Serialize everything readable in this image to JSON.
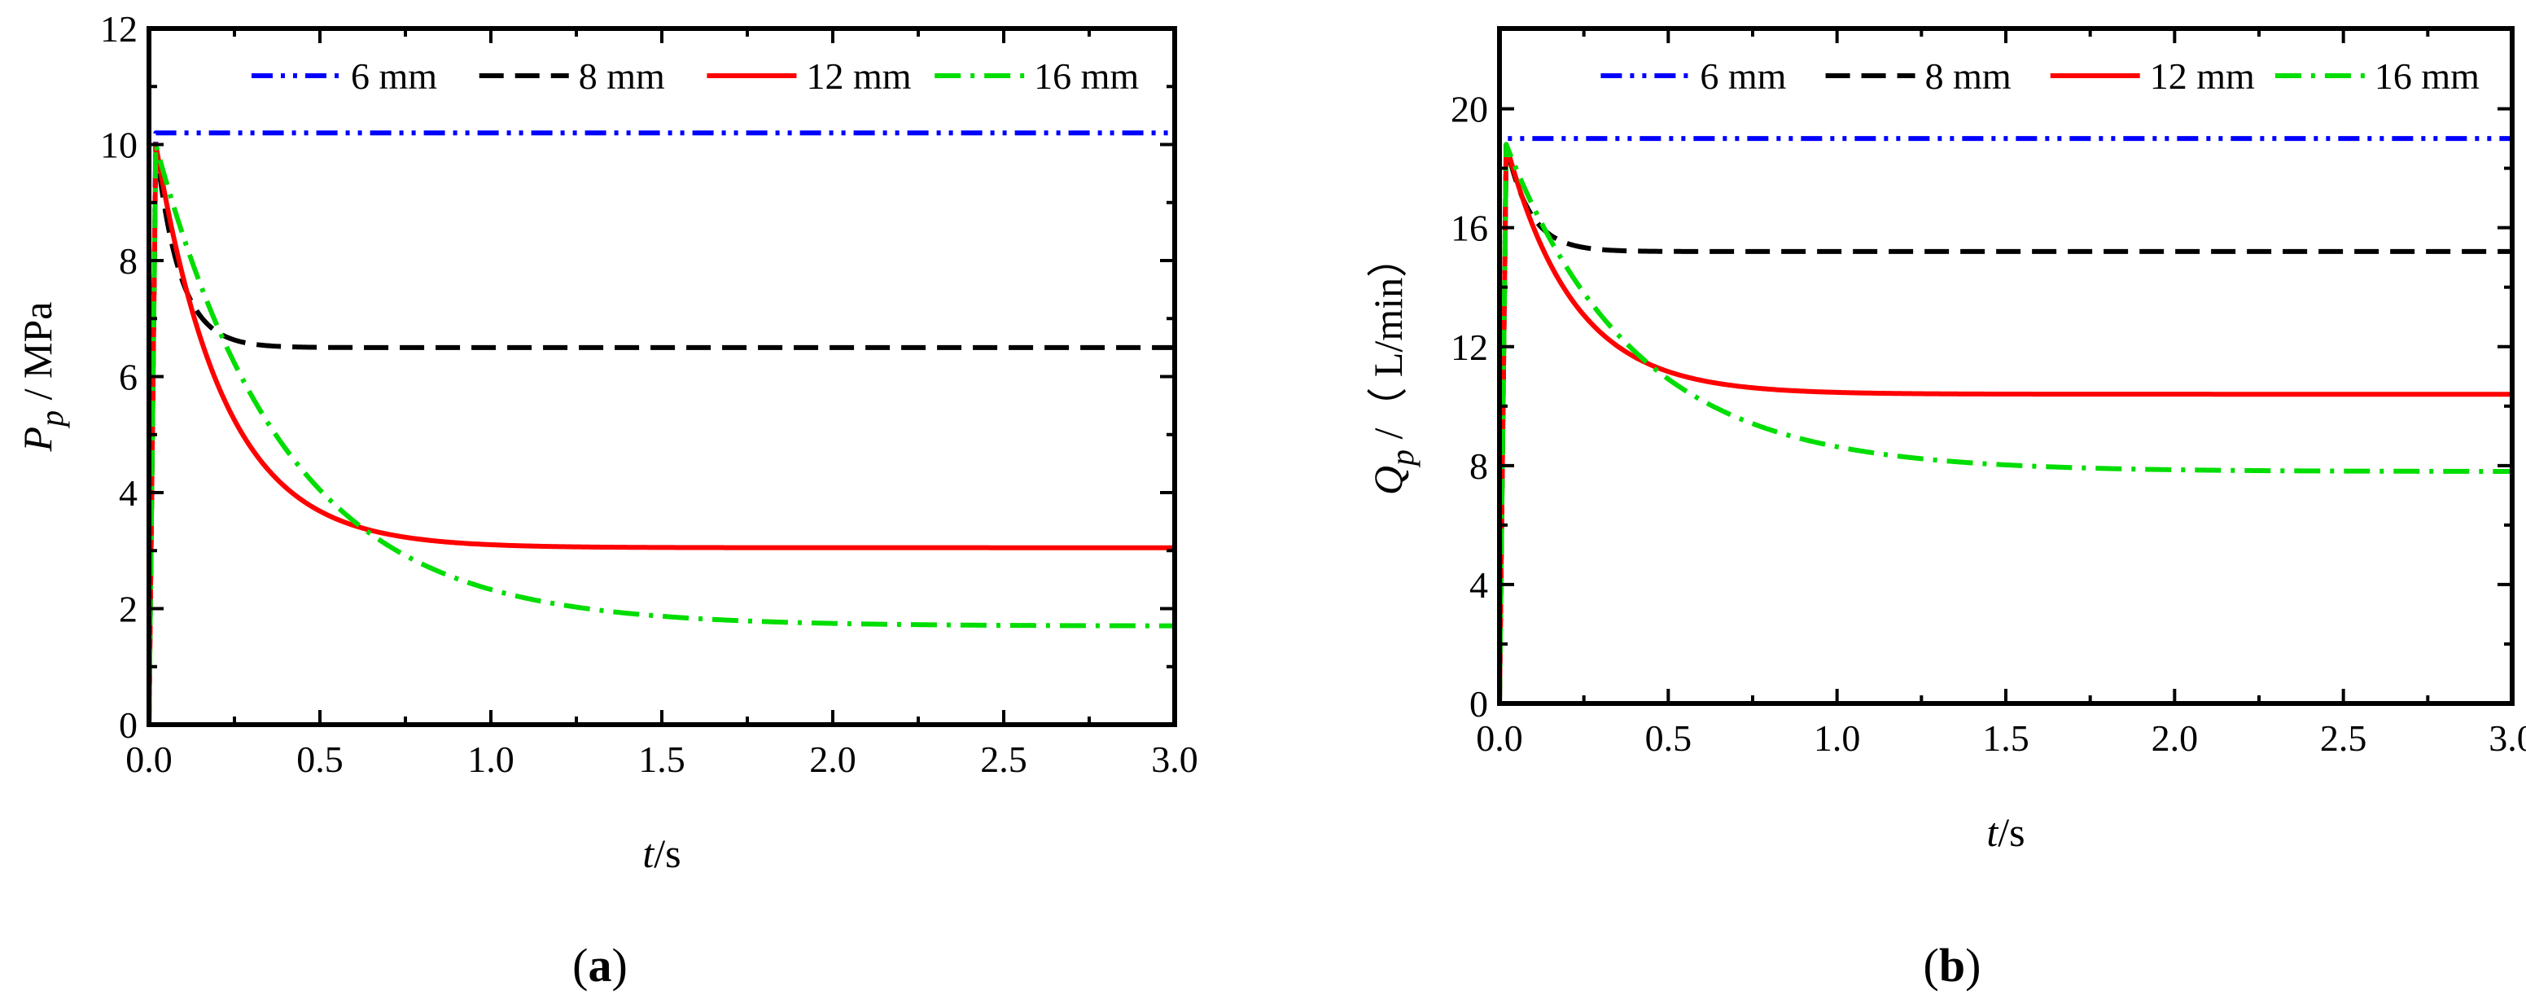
{
  "figure": {
    "panels": [
      "a",
      "b"
    ]
  },
  "chart_data": [
    {
      "type": "line",
      "panel_label": "a",
      "title": "",
      "xlabel": {
        "italic": "t",
        "rest": "/s"
      },
      "ylabel": {
        "italic": "P",
        "sub": "p",
        "rest": " / MPa"
      },
      "xlim": [
        0,
        3
      ],
      "ylim": [
        0,
        12
      ],
      "xticks": [
        0,
        0.5,
        1.0,
        1.5,
        2.0,
        2.5,
        3.0
      ],
      "xtick_labels": [
        "0.0",
        "0.5",
        "1.0",
        "1.5",
        "2.0",
        "2.5",
        "3.0"
      ],
      "yticks": [
        0,
        2,
        4,
        6,
        8,
        10,
        12
      ],
      "ytick_labels": [
        "0",
        "2",
        "4",
        "6",
        "8",
        "10",
        "12"
      ],
      "legend_position": "top",
      "series": [
        {
          "name": "6 mm",
          "color": "#0000ff",
          "dash": "dash-dot-dot",
          "start": 10.2,
          "final": 10.2,
          "tau": 1,
          "x": [
            0.0,
            0.02,
            3.0
          ],
          "y": [
            0.0,
            10.2,
            10.2
          ]
        },
        {
          "name": "8 mm",
          "color": "#000000",
          "dash": "dashed",
          "start": 10.0,
          "final": 6.5,
          "tau": 0.07,
          "x": [
            0.0,
            0.02,
            0.1,
            0.2,
            0.3,
            0.5,
            1.0,
            2.0,
            3.0
          ],
          "y": [
            0.0,
            10.0,
            7.8,
            6.9,
            6.6,
            6.5,
            6.5,
            6.5,
            6.5
          ]
        },
        {
          "name": "12 mm",
          "color": "#ff0000",
          "dash": "solid",
          "start": 10.0,
          "final": 3.05,
          "tau": 0.2,
          "x": [
            0.0,
            0.02,
            0.1,
            0.25,
            0.5,
            0.7,
            1.0,
            2.0,
            3.0
          ],
          "y": [
            0.0,
            10.0,
            7.5,
            5.3,
            3.6,
            3.2,
            3.05,
            3.05,
            3.05
          ]
        },
        {
          "name": "16 mm",
          "color": "#00dd00",
          "dash": "dash-dot",
          "start": 10.0,
          "final": 1.7,
          "tau": 0.38,
          "x": [
            0.0,
            0.02,
            0.25,
            0.5,
            0.7,
            1.0,
            1.5,
            2.0,
            3.0
          ],
          "y": [
            0.0,
            10.0,
            6.2,
            4.3,
            3.3,
            2.4,
            1.8,
            1.72,
            1.7
          ]
        }
      ]
    },
    {
      "type": "line",
      "panel_label": "b",
      "title": "",
      "xlabel": {
        "italic": "t",
        "rest": "/s"
      },
      "ylabel": {
        "italic": "Q",
        "sub": "p",
        "rest": " /（ L/min）"
      },
      "xlim": [
        0,
        3
      ],
      "ylim": [
        0,
        22.7
      ],
      "xticks": [
        0,
        0.5,
        1.0,
        1.5,
        2.0,
        2.5,
        3.0
      ],
      "xtick_labels": [
        "0.0",
        "0.5",
        "1.0",
        "1.5",
        "2.0",
        "2.5",
        "3.0"
      ],
      "yticks": [
        0,
        4,
        8,
        12,
        16,
        20
      ],
      "ytick_labels": [
        "0",
        "4",
        "8",
        "12",
        "16",
        "20"
      ],
      "legend_position": "top",
      "series": [
        {
          "name": "6 mm",
          "color": "#0000ff",
          "dash": "dash-dot-dot",
          "start": 19.0,
          "final": 19.0,
          "tau": 1,
          "x": [
            0.0,
            0.02,
            3.0
          ],
          "y": [
            0.0,
            19.0,
            19.0
          ]
        },
        {
          "name": "8 mm",
          "color": "#000000",
          "dash": "dashed",
          "start": 18.8,
          "final": 15.2,
          "tau": 0.07,
          "x": [
            0.0,
            0.02,
            0.1,
            0.2,
            0.3,
            0.5,
            1.0,
            2.0,
            3.0
          ],
          "y": [
            0.0,
            18.8,
            16.5,
            15.6,
            15.3,
            15.2,
            15.2,
            15.2,
            15.2
          ]
        },
        {
          "name": "12 mm",
          "color": "#ff0000",
          "dash": "solid",
          "start": 18.8,
          "final": 10.4,
          "tau": 0.2,
          "x": [
            0.0,
            0.02,
            0.1,
            0.25,
            0.5,
            0.7,
            1.0,
            2.0,
            3.0
          ],
          "y": [
            0.0,
            18.8,
            15.8,
            13.2,
            11.3,
            10.7,
            10.4,
            10.4,
            10.4
          ]
        },
        {
          "name": "16 mm",
          "color": "#00dd00",
          "dash": "dash-dot",
          "start": 18.8,
          "final": 7.8,
          "tau": 0.38,
          "x": [
            0.0,
            0.02,
            0.25,
            0.5,
            0.7,
            1.0,
            1.5,
            2.0,
            3.0
          ],
          "y": [
            0.0,
            18.8,
            13.8,
            11.4,
            10.4,
            9.2,
            8.0,
            7.85,
            7.8
          ]
        }
      ]
    }
  ]
}
